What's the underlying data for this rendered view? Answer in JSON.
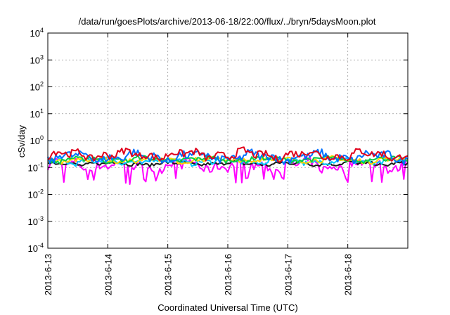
{
  "chart_data": {
    "type": "line",
    "title": "/data/run/goesPlots/archive/2013-06-18/22:00/flux/../bryn/5daysMoon.plot",
    "xlabel": "Coordinated Universal Time (UTC)",
    "ylabel": "cSv/day",
    "y_scale": "log",
    "ylim": [
      0.0001,
      10000
    ],
    "y_ticks": [
      {
        "base": "10",
        "exp": "4",
        "value": 10000
      },
      {
        "base": "10",
        "exp": "3",
        "value": 1000
      },
      {
        "base": "10",
        "exp": "2",
        "value": 100
      },
      {
        "base": "10",
        "exp": "1",
        "value": 10
      },
      {
        "base": "10",
        "exp": "0",
        "value": 1
      },
      {
        "base": "10",
        "exp": "-1",
        "value": 0.1
      },
      {
        "base": "10",
        "exp": "-2",
        "value": 0.01
      },
      {
        "base": "10",
        "exp": "-3",
        "value": 0.001
      },
      {
        "base": "10",
        "exp": "-4",
        "value": 0.0001
      }
    ],
    "xlim": [
      "2013-06-13",
      "2013-06-19"
    ],
    "x_ticks": [
      "2013-6-13",
      "2013-6-14",
      "2013-6-15",
      "2013-6-16",
      "2013-6-17",
      "2013-6-18"
    ],
    "grid": true,
    "series": [
      {
        "color": "#ff00ff",
        "level": 0.12,
        "amplitude": 0.35,
        "spikes": true
      },
      {
        "color": "#1a1a1a",
        "level": 0.14,
        "amplitude": 0.12
      },
      {
        "color": "#00c8ff",
        "level": 0.17,
        "amplitude": 0.18
      },
      {
        "color": "#ffd700",
        "level": 0.19,
        "amplitude": 0.16
      },
      {
        "color": "#00cc44",
        "level": 0.2,
        "amplitude": 0.16
      },
      {
        "color": "#0070ff",
        "level": 0.25,
        "amplitude": 0.3
      },
      {
        "color": "#e0001b",
        "level": 0.3,
        "amplitude": 0.28
      }
    ]
  }
}
